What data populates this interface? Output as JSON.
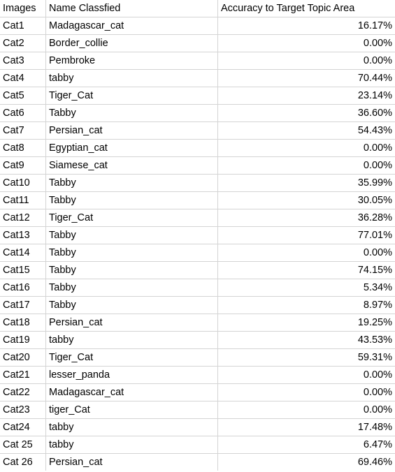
{
  "headers": {
    "images": "Images",
    "name": "Name Classfied",
    "accuracy": "Accuracy to Target Topic Area"
  },
  "rows": [
    {
      "image": "Cat1",
      "name": "Madagascar_cat",
      "accuracy": "16.17%"
    },
    {
      "image": "Cat2",
      "name": "Border_collie",
      "accuracy": "0.00%"
    },
    {
      "image": "Cat3",
      "name": "Pembroke",
      "accuracy": "0.00%"
    },
    {
      "image": "Cat4",
      "name": "tabby",
      "accuracy": "70.44%"
    },
    {
      "image": "Cat5",
      "name": "Tiger_Cat",
      "accuracy": "23.14%"
    },
    {
      "image": "Cat6",
      "name": "Tabby",
      "accuracy": "36.60%"
    },
    {
      "image": "Cat7",
      "name": "Persian_cat",
      "accuracy": "54.43%"
    },
    {
      "image": "Cat8",
      "name": "Egyptian_cat",
      "accuracy": "0.00%"
    },
    {
      "image": "Cat9",
      "name": "Siamese_cat",
      "accuracy": "0.00%"
    },
    {
      "image": "Cat10",
      "name": "Tabby",
      "accuracy": "35.99%"
    },
    {
      "image": "Cat11",
      "name": "Tabby",
      "accuracy": "30.05%"
    },
    {
      "image": "Cat12",
      "name": "Tiger_Cat",
      "accuracy": "36.28%"
    },
    {
      "image": "Cat13",
      "name": "Tabby",
      "accuracy": "77.01%"
    },
    {
      "image": "Cat14",
      "name": "Tabby",
      "accuracy": "0.00%"
    },
    {
      "image": "Cat15",
      "name": "Tabby",
      "accuracy": "74.15%"
    },
    {
      "image": "Cat16",
      "name": "Tabby",
      "accuracy": "5.34%"
    },
    {
      "image": "Cat17",
      "name": "Tabby",
      "accuracy": "8.97%"
    },
    {
      "image": "Cat18",
      "name": "Persian_cat",
      "accuracy": "19.25%"
    },
    {
      "image": "Cat19",
      "name": "tabby",
      "accuracy": "43.53%"
    },
    {
      "image": "Cat20",
      "name": "Tiger_Cat",
      "accuracy": "59.31%"
    },
    {
      "image": "Cat21",
      "name": "lesser_panda",
      "accuracy": "0.00%"
    },
    {
      "image": "Cat22",
      "name": "Madagascar_cat",
      "accuracy": "0.00%"
    },
    {
      "image": "Cat23",
      "name": "tiger_Cat",
      "accuracy": "0.00%"
    },
    {
      "image": "Cat24",
      "name": "tabby",
      "accuracy": "17.48%"
    },
    {
      "image": "Cat 25",
      "name": "tabby",
      "accuracy": "6.47%"
    },
    {
      "image": "Cat 26",
      "name": "Persian_cat",
      "accuracy": "69.46%"
    }
  ]
}
